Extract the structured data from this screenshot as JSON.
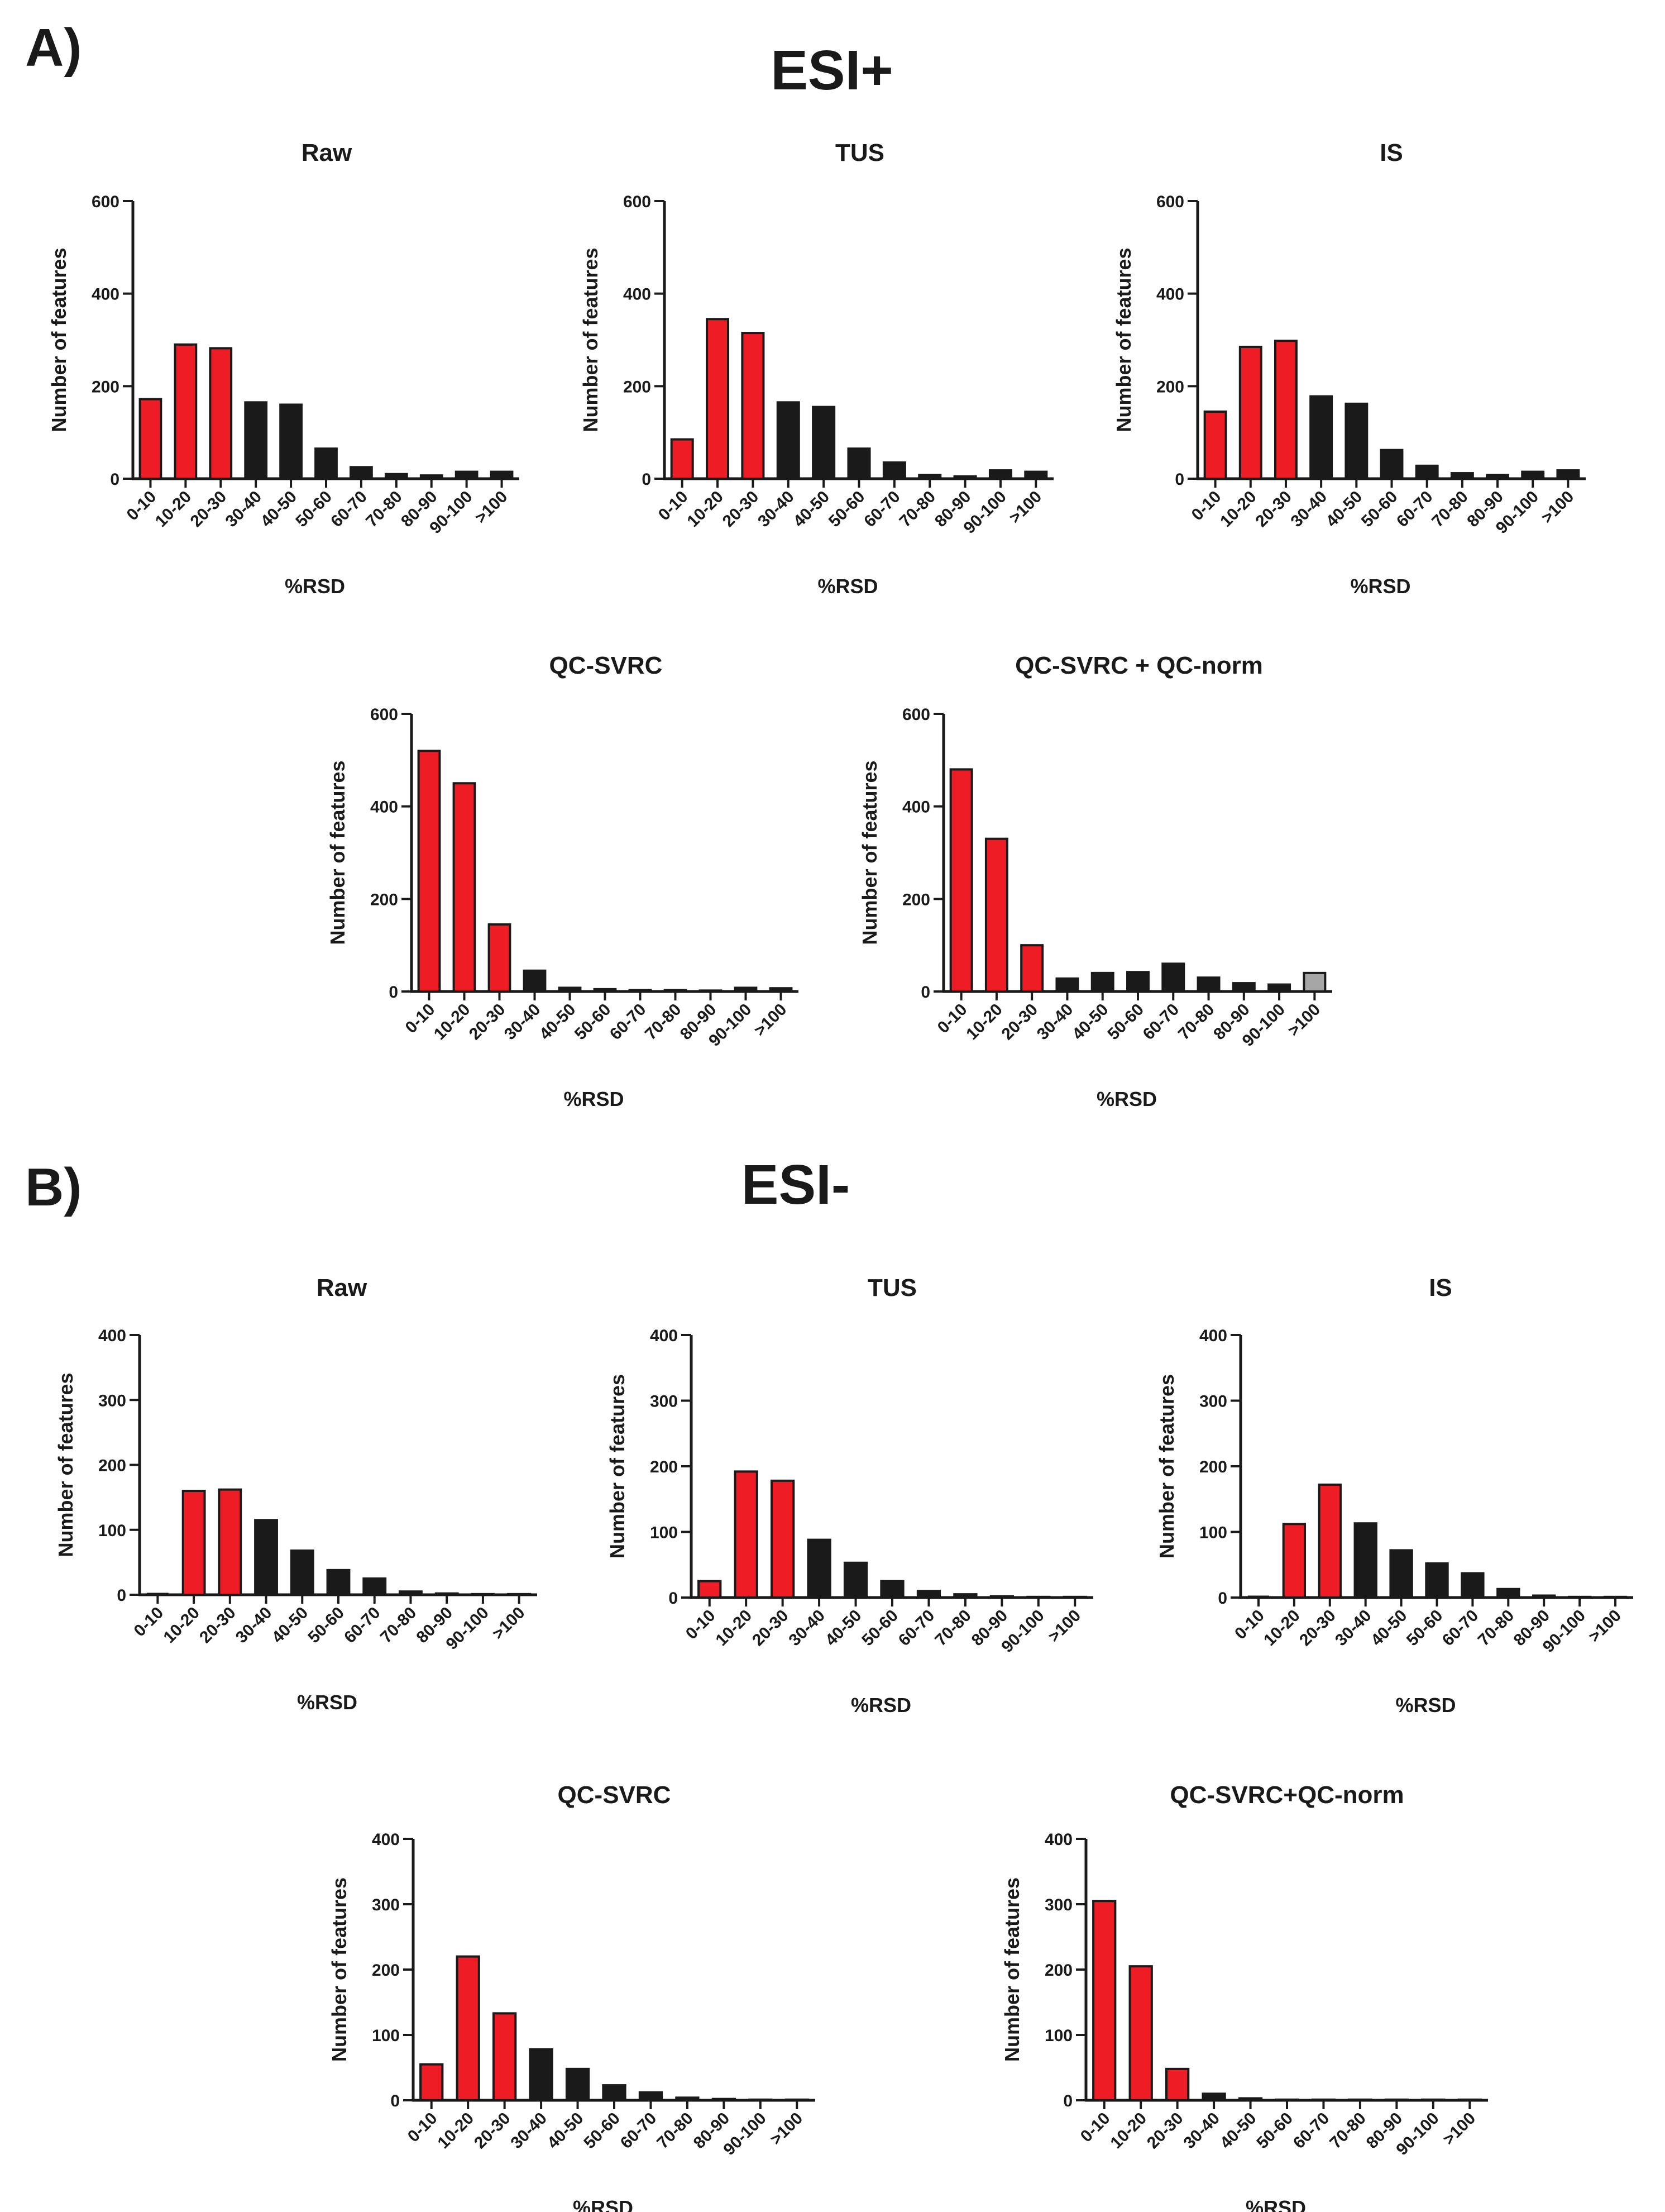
{
  "panel_a": {
    "label": "A)",
    "title": "ESI+"
  },
  "panel_b": {
    "label": "B)",
    "title": "ESI-"
  },
  "colors": {
    "red": "#ee1c25",
    "black": "#1a1a1a",
    "gray": "#a6a6a6",
    "axis": "#1a1a1a"
  },
  "chart_data": [
    {
      "type": "bar",
      "section": "ESI+",
      "title": "Raw",
      "categories": [
        "0-10",
        "10-20",
        "20-30",
        "30-40",
        "40-50",
        "50-60",
        "60-70",
        "70-80",
        "80-90",
        "90-100",
        ">100"
      ],
      "values": [
        172,
        290,
        282,
        165,
        160,
        65,
        25,
        10,
        7,
        15,
        15
      ],
      "colors": [
        "red",
        "red",
        "red",
        "black",
        "black",
        "black",
        "black",
        "black",
        "black",
        "black",
        "black"
      ],
      "xlabel": "%RSD",
      "ylabel": "Number of features",
      "ylim": [
        0,
        600
      ],
      "yticks": [
        0,
        200,
        400,
        600
      ],
      "grid": false
    },
    {
      "type": "bar",
      "section": "ESI+",
      "title": "TUS",
      "categories": [
        "0-10",
        "10-20",
        "20-30",
        "30-40",
        "40-50",
        "50-60",
        "60-70",
        "70-80",
        "80-90",
        "90-100",
        ">100"
      ],
      "values": [
        85,
        345,
        315,
        165,
        155,
        65,
        35,
        8,
        5,
        18,
        15
      ],
      "colors": [
        "red",
        "red",
        "red",
        "black",
        "black",
        "black",
        "black",
        "black",
        "black",
        "black",
        "black"
      ],
      "xlabel": "%RSD",
      "ylabel": "Number of features",
      "ylim": [
        0,
        600
      ],
      "yticks": [
        0,
        200,
        400,
        600
      ],
      "grid": false
    },
    {
      "type": "bar",
      "section": "ESI+",
      "title": "IS",
      "categories": [
        "0-10",
        "10-20",
        "20-30",
        "30-40",
        "40-50",
        "50-60",
        "60-70",
        "70-80",
        "80-90",
        "90-100",
        ">100"
      ],
      "values": [
        145,
        285,
        298,
        178,
        162,
        62,
        28,
        12,
        8,
        15,
        18
      ],
      "colors": [
        "red",
        "red",
        "red",
        "black",
        "black",
        "black",
        "black",
        "black",
        "black",
        "black",
        "black"
      ],
      "xlabel": "%RSD",
      "ylabel": "Number of features",
      "ylim": [
        0,
        600
      ],
      "yticks": [
        0,
        200,
        400,
        600
      ],
      "grid": false
    },
    {
      "type": "bar",
      "section": "ESI+",
      "title": "QC-SVRC",
      "categories": [
        "0-10",
        "10-20",
        "20-30",
        "30-40",
        "40-50",
        "50-60",
        "60-70",
        "70-80",
        "80-90",
        "90-100",
        ">100"
      ],
      "values": [
        520,
        450,
        145,
        45,
        8,
        5,
        3,
        3,
        2,
        8,
        7
      ],
      "colors": [
        "red",
        "red",
        "red",
        "black",
        "black",
        "black",
        "black",
        "black",
        "black",
        "black",
        "black"
      ],
      "xlabel": "%RSD",
      "ylabel": "Number of features",
      "ylim": [
        0,
        600
      ],
      "yticks": [
        0,
        200,
        400,
        600
      ],
      "grid": false
    },
    {
      "type": "bar",
      "section": "ESI+",
      "title": "QC-SVRC + QC-norm",
      "categories": [
        "0-10",
        "10-20",
        "20-30",
        "30-40",
        "40-50",
        "50-60",
        "60-70",
        "70-80",
        "80-90",
        "90-100",
        ">100"
      ],
      "values": [
        480,
        330,
        100,
        28,
        40,
        42,
        60,
        30,
        18,
        15,
        40
      ],
      "colors": [
        "red",
        "red",
        "red",
        "black",
        "black",
        "black",
        "black",
        "black",
        "black",
        "black",
        "gray"
      ],
      "xlabel": "%RSD",
      "ylabel": "Number of features",
      "ylim": [
        0,
        600
      ],
      "yticks": [
        0,
        200,
        400,
        600
      ],
      "grid": false
    },
    {
      "type": "bar",
      "section": "ESI-",
      "title": "Raw",
      "categories": [
        "0-10",
        "10-20",
        "20-30",
        "30-40",
        "40-50",
        "50-60",
        "60-70",
        "70-80",
        "80-90",
        "90-100",
        ">100"
      ],
      "values": [
        0,
        160,
        162,
        115,
        68,
        38,
        25,
        5,
        2,
        1,
        1
      ],
      "colors": [
        "red",
        "red",
        "red",
        "black",
        "black",
        "black",
        "black",
        "black",
        "black",
        "black",
        "black"
      ],
      "xlabel": "%RSD",
      "ylabel": "Number of features",
      "ylim": [
        0,
        400
      ],
      "yticks": [
        0,
        100,
        200,
        300,
        400
      ],
      "grid": false
    },
    {
      "type": "bar",
      "section": "ESI-",
      "title": "TUS",
      "categories": [
        "0-10",
        "10-20",
        "20-30",
        "30-40",
        "40-50",
        "50-60",
        "60-70",
        "70-80",
        "80-90",
        "90-100",
        ">100"
      ],
      "values": [
        25,
        192,
        178,
        88,
        53,
        25,
        10,
        5,
        2,
        1,
        1
      ],
      "colors": [
        "red",
        "red",
        "red",
        "black",
        "black",
        "black",
        "black",
        "black",
        "black",
        "black",
        "black"
      ],
      "xlabel": "%RSD",
      "ylabel": "Number of features",
      "ylim": [
        0,
        400
      ],
      "yticks": [
        0,
        100,
        200,
        300,
        400
      ],
      "grid": false
    },
    {
      "type": "bar",
      "section": "ESI-",
      "title": "IS",
      "categories": [
        "0-10",
        "10-20",
        "20-30",
        "30-40",
        "40-50",
        "50-60",
        "60-70",
        "70-80",
        "80-90",
        "90-100",
        ">100"
      ],
      "values": [
        0,
        112,
        172,
        113,
        72,
        52,
        37,
        13,
        3,
        1,
        1
      ],
      "colors": [
        "red",
        "red",
        "red",
        "black",
        "black",
        "black",
        "black",
        "black",
        "black",
        "black",
        "black"
      ],
      "xlabel": "%RSD",
      "ylabel": "Number of features",
      "ylim": [
        0,
        400
      ],
      "yticks": [
        0,
        100,
        200,
        300,
        400
      ],
      "grid": false
    },
    {
      "type": "bar",
      "section": "ESI-",
      "title": "QC-SVRC",
      "categories": [
        "0-10",
        "10-20",
        "20-30",
        "30-40",
        "40-50",
        "50-60",
        "60-70",
        "70-80",
        "80-90",
        "90-100",
        ">100"
      ],
      "values": [
        55,
        220,
        133,
        78,
        48,
        23,
        12,
        4,
        2,
        1,
        1
      ],
      "colors": [
        "red",
        "red",
        "red",
        "black",
        "black",
        "black",
        "black",
        "black",
        "black",
        "black",
        "black"
      ],
      "xlabel": "%RSD",
      "ylabel": "Number of features",
      "ylim": [
        0,
        400
      ],
      "yticks": [
        0,
        100,
        200,
        300,
        400
      ],
      "grid": false
    },
    {
      "type": "bar",
      "section": "ESI-",
      "title": "QC-SVRC+QC-norm",
      "categories": [
        "0-10",
        "10-20",
        "20-30",
        "30-40",
        "40-50",
        "50-60",
        "60-70",
        "70-80",
        "80-90",
        "90-100",
        ">100"
      ],
      "values": [
        305,
        205,
        48,
        10,
        3,
        1,
        1,
        1,
        1,
        1,
        1
      ],
      "colors": [
        "red",
        "red",
        "red",
        "black",
        "black",
        "black",
        "black",
        "black",
        "black",
        "black",
        "black"
      ],
      "xlabel": "%RSD",
      "ylabel": "Number of features",
      "ylim": [
        0,
        400
      ],
      "yticks": [
        0,
        100,
        200,
        300,
        400
      ],
      "grid": false
    }
  ]
}
